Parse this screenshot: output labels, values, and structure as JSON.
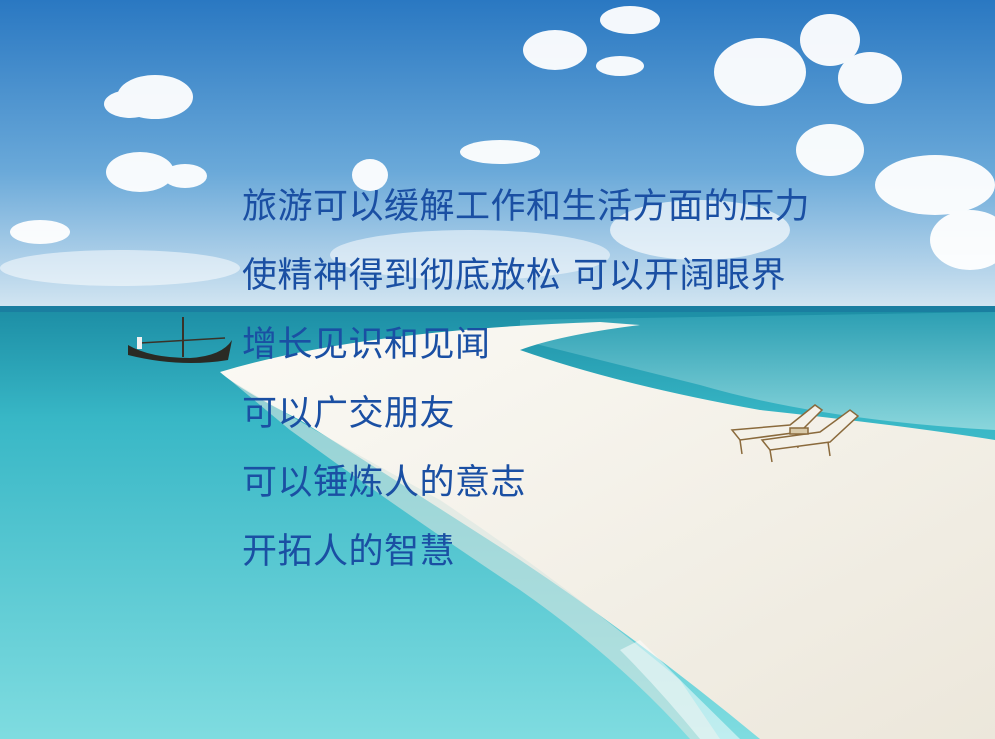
{
  "text_lines": [
    "旅游可以缓解工作和生活方面的压力",
    "使精神得到彻底放松  可以开阔眼界",
    "增长见识和见闻",
    "可以广交朋友",
    "可以锤炼人的意志",
    "开拓人的智慧"
  ],
  "colors": {
    "text": "#1a4fa3",
    "sky_top": "#2f7fc6",
    "sky_horizon": "#cfe2f0",
    "sea": "#4fc3d0",
    "sand": "#f5f2ea"
  }
}
